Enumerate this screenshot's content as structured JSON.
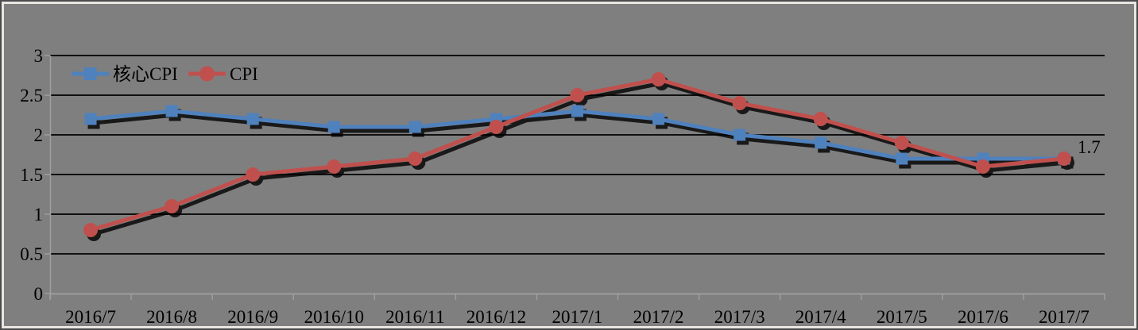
{
  "chart_data": {
    "type": "line",
    "title": "",
    "xlabel": "",
    "ylabel": "",
    "categories": [
      "2016/7",
      "2016/8",
      "2016/9",
      "2016/10",
      "2016/11",
      "2016/12",
      "2017/1",
      "2017/2",
      "2017/3",
      "2017/4",
      "2017/5",
      "2017/6",
      "2017/7"
    ],
    "series": [
      {
        "name": "核心CPI",
        "color": "#4f81bd",
        "marker": "square",
        "values": [
          2.2,
          2.3,
          2.2,
          2.1,
          2.1,
          2.2,
          2.3,
          2.2,
          2.0,
          1.9,
          1.7,
          1.7,
          1.7
        ]
      },
      {
        "name": "CPI",
        "color": "#c0504d",
        "marker": "circle",
        "values": [
          0.8,
          1.1,
          1.5,
          1.6,
          1.7,
          2.1,
          2.5,
          2.7,
          2.4,
          2.2,
          1.9,
          1.6,
          1.7
        ]
      }
    ],
    "ylim": [
      0,
      3
    ],
    "yticks": [
      0,
      0.5,
      1,
      1.5,
      2,
      2.5,
      3
    ],
    "ytick_labels": [
      "0",
      "0.5",
      "1",
      "1.5",
      "2",
      "2.5",
      "3"
    ],
    "grid": true,
    "legend_position": "top-left-inside",
    "annotations": [
      {
        "text": "1.7",
        "series_index": 1,
        "x_index": 12
      }
    ]
  },
  "colors": {
    "background": "#7f7f7f",
    "gridline": "#000000",
    "axis": "#a0a0a0",
    "text": "#000000",
    "shadow": "#000000",
    "frame_dark": "#4b4b4b",
    "frame_light": "#e9e6e1"
  }
}
